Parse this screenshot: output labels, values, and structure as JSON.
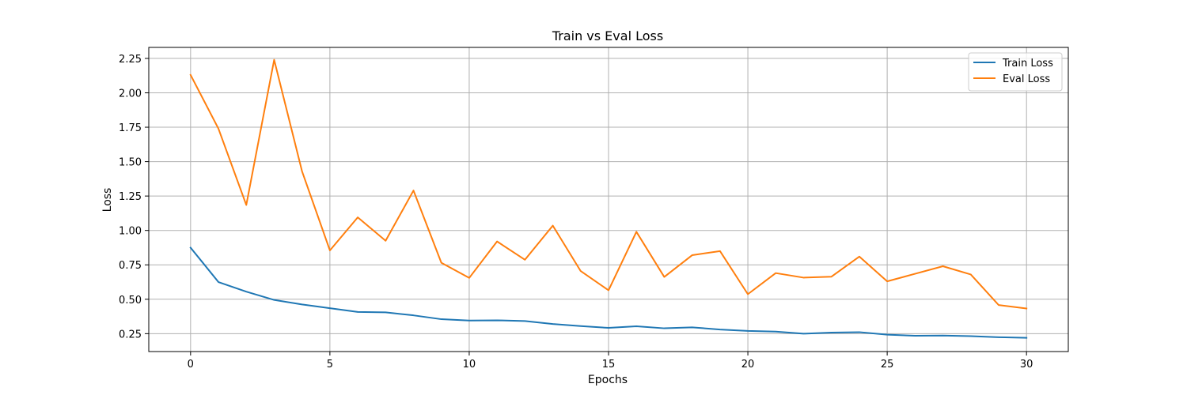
{
  "chart_data": {
    "type": "line",
    "title": "Train vs Eval Loss",
    "xlabel": "Epochs",
    "ylabel": "Loss",
    "xlim": [
      -1.5,
      31.5
    ],
    "ylim": [
      0.12,
      2.33
    ],
    "xticks": [
      0,
      5,
      10,
      15,
      20,
      25,
      30
    ],
    "xtick_labels": [
      "0",
      "5",
      "10",
      "15",
      "20",
      "25",
      "30"
    ],
    "yticks": [
      0.25,
      0.5,
      0.75,
      1.0,
      1.25,
      1.5,
      1.75,
      2.0,
      2.25
    ],
    "ytick_labels": [
      "0.25",
      "0.50",
      "0.75",
      "1.00",
      "1.25",
      "1.50",
      "1.75",
      "2.00",
      "2.25"
    ],
    "grid": true,
    "legend_position": "top-right",
    "x": [
      0,
      1,
      2,
      3,
      4,
      5,
      6,
      7,
      8,
      9,
      10,
      11,
      12,
      13,
      14,
      15,
      16,
      17,
      18,
      19,
      20,
      21,
      22,
      23,
      24,
      25,
      26,
      27,
      28,
      29,
      30
    ],
    "series": [
      {
        "name": "Train Loss",
        "color": "#1f77b4",
        "values": [
          0.875,
          0.625,
          0.555,
          0.495,
          0.462,
          0.435,
          0.408,
          0.405,
          0.383,
          0.355,
          0.345,
          0.347,
          0.342,
          0.32,
          0.305,
          0.292,
          0.304,
          0.289,
          0.296,
          0.28,
          0.27,
          0.265,
          0.25,
          0.258,
          0.261,
          0.243,
          0.235,
          0.236,
          0.232,
          0.224,
          0.22
        ]
      },
      {
        "name": "Eval Loss",
        "color": "#ff7f0e",
        "values": [
          2.13,
          1.74,
          1.185,
          2.24,
          1.43,
          0.855,
          1.095,
          0.925,
          1.29,
          0.765,
          0.655,
          0.92,
          0.787,
          1.035,
          0.705,
          0.565,
          0.99,
          0.662,
          0.82,
          0.85,
          0.537,
          0.69,
          0.657,
          0.664,
          0.81,
          0.63,
          0.685,
          0.74,
          0.68,
          0.458,
          0.433
        ]
      }
    ]
  }
}
